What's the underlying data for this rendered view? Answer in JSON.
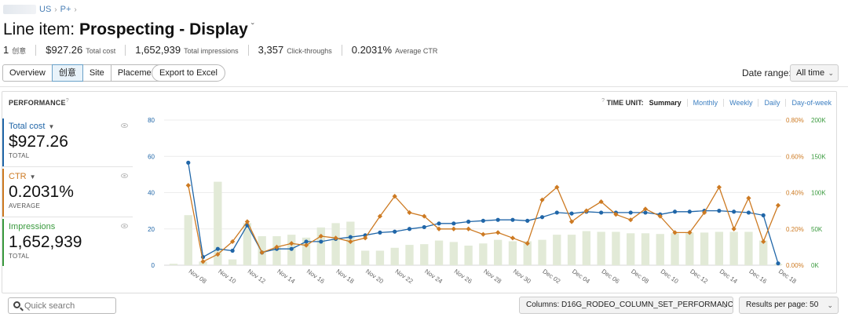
{
  "breadcrumb": {
    "items": [
      "US",
      "P+"
    ],
    "separator": "›"
  },
  "header": {
    "prefix": "Line item:",
    "name": "Prospecting - Display",
    "chevron": "ˇ"
  },
  "stats": [
    {
      "value": "1",
      "label": "创意"
    },
    {
      "value": "$927.26",
      "label": "Total cost"
    },
    {
      "value": "1,652,939",
      "label": "Total impressions"
    },
    {
      "value": "3,357",
      "label": "Click-throughs"
    },
    {
      "value": "0.2031%",
      "label": "Average CTR"
    }
  ],
  "tabs": [
    {
      "label": "Overview",
      "active": false
    },
    {
      "label": "创意",
      "active": true
    },
    {
      "label": "Site",
      "active": false
    },
    {
      "label": "Placement",
      "active": false
    }
  ],
  "export_label": "Export to Excel",
  "date_range": {
    "label": "Date range:",
    "value": "All time"
  },
  "performance": {
    "title": "PERFORMANCE",
    "time_unit_label": "TIME UNIT:",
    "time_units": [
      "Summary",
      "Monthly",
      "Weekly",
      "Daily",
      "Day-of-week"
    ],
    "selected_time_unit": "Summary",
    "metrics": [
      {
        "label": "Total cost",
        "value": "$927.26",
        "sub": "TOTAL",
        "color": "#2066a8"
      },
      {
        "label": "CTR",
        "value": "0.2031%",
        "sub": "AVERAGE",
        "color": "#cd7a22"
      },
      {
        "label": "Impressions",
        "value": "1,652,939",
        "sub": "TOTAL",
        "color": "#3a9a3e"
      }
    ]
  },
  "chart_data": {
    "type": "bar",
    "x": [
      "Nov 07",
      "Nov 08",
      "Nov 09",
      "Nov 10",
      "Nov 11",
      "Nov 12",
      "Nov 13",
      "Nov 14",
      "Nov 15",
      "Nov 16",
      "Nov 17",
      "Nov 18",
      "Nov 19",
      "Nov 20",
      "Nov 21",
      "Nov 22",
      "Nov 23",
      "Nov 24",
      "Nov 25",
      "Nov 26",
      "Nov 27",
      "Nov 28",
      "Nov 29",
      "Nov 30",
      "Dec 01",
      "Dec 02",
      "Dec 03",
      "Dec 04",
      "Dec 05",
      "Dec 06",
      "Dec 07",
      "Dec 08",
      "Dec 09",
      "Dec 10",
      "Dec 11",
      "Dec 12",
      "Dec 13",
      "Dec 14",
      "Dec 15",
      "Dec 16",
      "Dec 17",
      "Dec 18"
    ],
    "tick_labels": [
      "Nov 08",
      "Nov 10",
      "Nov 12",
      "Nov 14",
      "Nov 16",
      "Nov 18",
      "Nov 20",
      "Nov 22",
      "Nov 24",
      "Nov 26",
      "Nov 28",
      "Nov 30",
      "Dec 02",
      "Dec 04",
      "Dec 06",
      "Dec 08",
      "Dec 10",
      "Dec 12",
      "Dec 14",
      "Dec 16",
      "Dec 18"
    ],
    "series": [
      {
        "name": "Impressions",
        "axis": "right2",
        "kind": "bar",
        "color": "#e2ead7",
        "values": [
          2000,
          69000,
          5000,
          115000,
          8000,
          58000,
          40000,
          40000,
          42000,
          38000,
          52000,
          58000,
          60000,
          20000,
          20000,
          24000,
          28000,
          29000,
          34000,
          32000,
          27000,
          30000,
          35000,
          33000,
          33000,
          35000,
          42000,
          42000,
          47000,
          46000,
          46000,
          44000,
          44000,
          43000,
          44000,
          45000,
          45000,
          46000,
          46000,
          46000,
          34000,
          2000
        ]
      },
      {
        "name": "Total cost",
        "axis": "left",
        "kind": "line",
        "color": "#2066a8",
        "values": [
          null,
          56.5,
          4.5,
          9,
          8,
          22,
          7,
          9,
          9,
          13,
          13,
          14.5,
          15.5,
          16.5,
          18,
          18.5,
          20,
          21,
          23,
          23,
          24,
          24.5,
          25,
          25,
          24.5,
          26.5,
          29,
          28.5,
          29.5,
          29,
          29,
          29,
          29,
          28,
          29.5,
          29.5,
          30,
          30,
          29.5,
          29,
          27.5,
          1
        ]
      },
      {
        "name": "CTR",
        "axis": "right1",
        "kind": "line",
        "color": "#cd7a22",
        "values": [
          null,
          0.44,
          0.02,
          0.06,
          0.13,
          0.24,
          0.07,
          0.1,
          0.12,
          0.11,
          0.16,
          0.15,
          0.13,
          0.15,
          0.27,
          0.38,
          0.29,
          0.27,
          0.2,
          0.2,
          0.2,
          0.17,
          0.18,
          0.15,
          0.12,
          0.36,
          0.43,
          0.24,
          0.3,
          0.35,
          0.28,
          0.25,
          0.31,
          0.27,
          0.18,
          0.18,
          0.29,
          0.43,
          0.2,
          0.37,
          0.13,
          0.33
        ]
      }
    ],
    "axes": {
      "left": {
        "min": 0,
        "max": 80,
        "ticks": [
          0,
          20,
          40,
          60,
          80
        ],
        "tick_labels": [
          "0",
          "20",
          "40",
          "60",
          "80"
        ],
        "color": "#2066a8"
      },
      "right1": {
        "min": 0,
        "max": 0.8,
        "ticks": [
          0,
          0.2,
          0.4,
          0.6,
          0.8
        ],
        "tick_labels": [
          "0.00%",
          "0.20%",
          "0.40%",
          "0.60%",
          "0.80%"
        ],
        "color": "#cd7a22"
      },
      "right2": {
        "min": 0,
        "max": 200000,
        "ticks": [
          0,
          50000,
          100000,
          150000,
          200000
        ],
        "tick_labels": [
          "0K",
          "50K",
          "100K",
          "150K",
          "200K"
        ],
        "color": "#3a9a3e"
      }
    },
    "grid": true,
    "legend": "left"
  },
  "search": {
    "placeholder": "Quick search"
  },
  "columns_select": {
    "label": "Columns:",
    "value": "D16G_RODEO_COLUMN_SET_PERFORMANCE"
  },
  "results_select": {
    "label": "Results per page:",
    "value": "50"
  }
}
